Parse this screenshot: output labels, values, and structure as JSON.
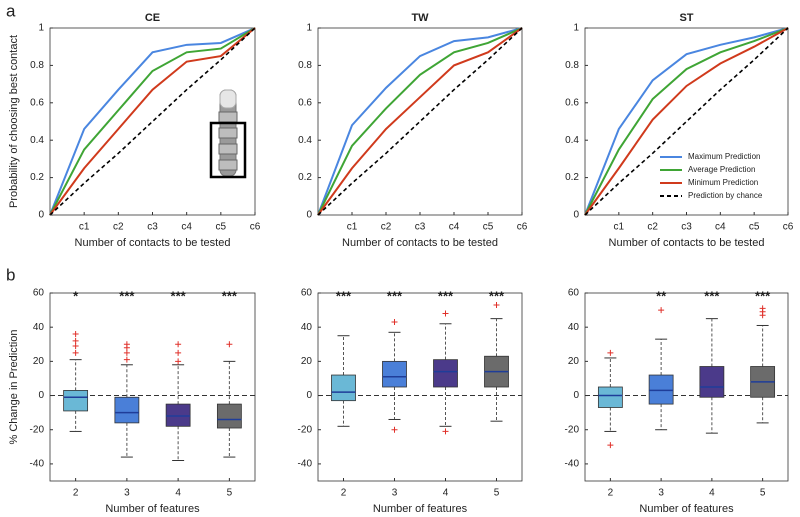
{
  "panel_labels": [
    "a",
    "b"
  ],
  "chart_data": [
    {
      "type": "line",
      "title": "CE",
      "xlabel": "Number of contacts to be tested",
      "ylabel": "Probability of choosing best contact",
      "categories": [
        null,
        "c1",
        "c2",
        "c3",
        "c4",
        "c5",
        "c6"
      ],
      "ylim": [
        0,
        1
      ],
      "yticks": [
        0,
        0.2,
        0.4,
        0.6,
        0.8,
        1
      ],
      "series": [
        {
          "color": "#4a86e0",
          "values": [
            0,
            0.46,
            0.67,
            0.87,
            0.91,
            0.92,
            1
          ]
        },
        {
          "color": "#3fa535",
          "values": [
            0,
            0.35,
            0.56,
            0.77,
            0.87,
            0.89,
            1
          ]
        },
        {
          "color": "#d03a1c",
          "values": [
            0,
            0.25,
            0.46,
            0.67,
            0.82,
            0.85,
            1
          ]
        },
        {
          "color": "#000000",
          "dash": true,
          "values": [
            0,
            0.17,
            0.33,
            0.5,
            0.67,
            0.83,
            1
          ]
        }
      ]
    },
    {
      "type": "line",
      "title": "TW",
      "xlabel": "Number of contacts to be tested",
      "categories": [
        null,
        "c1",
        "c2",
        "c3",
        "c4",
        "c5",
        "c6"
      ],
      "ylim": [
        0,
        1
      ],
      "yticks": [
        0,
        0.2,
        0.4,
        0.6,
        0.8,
        1
      ],
      "series": [
        {
          "color": "#4a86e0",
          "values": [
            0,
            0.48,
            0.68,
            0.85,
            0.93,
            0.95,
            1
          ]
        },
        {
          "color": "#3fa535",
          "values": [
            0,
            0.37,
            0.57,
            0.75,
            0.87,
            0.92,
            1
          ]
        },
        {
          "color": "#d03a1c",
          "values": [
            0,
            0.25,
            0.46,
            0.63,
            0.8,
            0.87,
            1
          ]
        },
        {
          "color": "#000000",
          "dash": true,
          "values": [
            0,
            0.17,
            0.33,
            0.5,
            0.67,
            0.83,
            1
          ]
        }
      ]
    },
    {
      "type": "line",
      "title": "ST",
      "xlabel": "Number of contacts to be tested",
      "legend": "lower right",
      "categories": [
        null,
        "c1",
        "c2",
        "c3",
        "c4",
        "c5",
        "c6"
      ],
      "ylim": [
        0,
        1
      ],
      "yticks": [
        0,
        0.2,
        0.4,
        0.6,
        0.8,
        1
      ],
      "series": [
        {
          "name": "Maximum Prediction",
          "color": "#4a86e0",
          "values": [
            0,
            0.46,
            0.72,
            0.86,
            0.91,
            0.95,
            1
          ]
        },
        {
          "name": "Average Prediction",
          "color": "#3fa535",
          "values": [
            0,
            0.35,
            0.62,
            0.78,
            0.87,
            0.93,
            1
          ]
        },
        {
          "name": "Minimum Prediction",
          "color": "#d03a1c",
          "values": [
            0,
            0.25,
            0.51,
            0.69,
            0.81,
            0.9,
            1
          ]
        },
        {
          "name": "Prediction by chance",
          "color": "#000000",
          "dash": true,
          "values": [
            0,
            0.17,
            0.33,
            0.5,
            0.67,
            0.83,
            1
          ]
        }
      ]
    },
    {
      "type": "box",
      "xlabel": "Number of features",
      "ylabel": "% Change in Prediction",
      "categories": [
        "2",
        "3",
        "4",
        "5"
      ],
      "ylim": [
        -50,
        60
      ],
      "yticks": [
        -40,
        -20,
        0,
        20,
        40,
        60
      ],
      "reference_line": 0,
      "annotations": [
        "*",
        "***",
        "***",
        "***"
      ],
      "boxes": [
        {
          "color": "#6ab8d6",
          "whislo": -21,
          "q1": -9,
          "med": -1,
          "q3": 3,
          "whishi": 21,
          "fliers": [
            25,
            29,
            32,
            36
          ]
        },
        {
          "color": "#4a7fd8",
          "whislo": -36,
          "q1": -16,
          "med": -10,
          "q3": -1,
          "whishi": 18,
          "fliers": [
            21,
            25,
            28,
            30
          ]
        },
        {
          "color": "#4b3a8a",
          "whislo": -38,
          "q1": -18,
          "med": -12,
          "q3": -5,
          "whishi": 18,
          "fliers": [
            20,
            25,
            30
          ]
        },
        {
          "color": "#6b6b6b",
          "whislo": -36,
          "q1": -19,
          "med": -14,
          "q3": -5,
          "whishi": 20,
          "fliers": [
            30
          ]
        }
      ]
    },
    {
      "type": "box",
      "xlabel": "Number of features",
      "categories": [
        "2",
        "3",
        "4",
        "5"
      ],
      "ylim": [
        -50,
        60
      ],
      "yticks": [
        -40,
        -20,
        0,
        20,
        40,
        60
      ],
      "reference_line": 0,
      "annotations": [
        "***",
        "***",
        "***",
        "***"
      ],
      "boxes": [
        {
          "color": "#6ab8d6",
          "whislo": -18,
          "q1": -3,
          "med": 2,
          "q3": 12,
          "whishi": 35,
          "fliers": []
        },
        {
          "color": "#4a7fd8",
          "whislo": -14,
          "q1": 5,
          "med": 11,
          "q3": 20,
          "whishi": 37,
          "fliers": [
            43,
            -20
          ]
        },
        {
          "color": "#4b3a8a",
          "whislo": -18,
          "q1": 5,
          "med": 14,
          "q3": 21,
          "whishi": 42,
          "fliers": [
            48,
            -21
          ]
        },
        {
          "color": "#6b6b6b",
          "whislo": -15,
          "q1": 5,
          "med": 14,
          "q3": 23,
          "whishi": 45,
          "fliers": [
            53
          ]
        }
      ]
    },
    {
      "type": "box",
      "xlabel": "Number of features",
      "categories": [
        "2",
        "3",
        "4",
        "5"
      ],
      "ylim": [
        -50,
        60
      ],
      "yticks": [
        -40,
        -20,
        0,
        20,
        40,
        60
      ],
      "reference_line": 0,
      "annotations": [
        null,
        "**",
        "***",
        "***"
      ],
      "boxes": [
        {
          "color": "#6ab8d6",
          "whislo": -21,
          "q1": -7,
          "med": 0,
          "q3": 5,
          "whishi": 22,
          "fliers": [
            25,
            -29
          ]
        },
        {
          "color": "#4a7fd8",
          "whislo": -20,
          "q1": -5,
          "med": 3,
          "q3": 12,
          "whishi": 33,
          "fliers": [
            50
          ]
        },
        {
          "color": "#4b3a8a",
          "whislo": -22,
          "q1": -1,
          "med": 5,
          "q3": 17,
          "whishi": 45,
          "fliers": []
        },
        {
          "color": "#6b6b6b",
          "whislo": -16,
          "q1": -1,
          "med": 8,
          "q3": 17,
          "whishi": 41,
          "fliers": [
            47,
            49,
            51
          ]
        }
      ]
    }
  ]
}
